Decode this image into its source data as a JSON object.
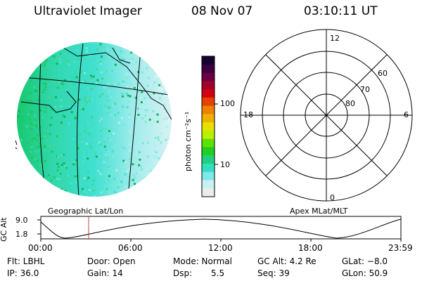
{
  "header": {
    "instrument": "Ultraviolet Imager",
    "date": "08 Nov 07",
    "time": "03:10:11 UT"
  },
  "colorbar": {
    "unit_label": "photon cm⁻²s⁻¹",
    "tick_100": "100",
    "tick_10": "10",
    "colors": [
      "#1a0030",
      "#3a0040",
      "#6a0040",
      "#a0002a",
      "#d00010",
      "#e84000",
      "#f08000",
      "#f0b000",
      "#e8e000",
      "#b8f000",
      "#60e000",
      "#20d020",
      "#20d080",
      "#30e0c0",
      "#80e8e8",
      "#c8f0f0",
      "#ececec"
    ]
  },
  "map_labels": {
    "left": "Geographic Lat/Lon",
    "right": "Apex MLat/MLT"
  },
  "polar": {
    "top": "12",
    "left": "18",
    "right": "6",
    "bottom": "0",
    "ring_60": "60",
    "ring_70": "70",
    "ring_80": "80"
  },
  "altitude_plot": {
    "ylabel": "GC Alt",
    "ymax": "9.0",
    "ymin": "1.8",
    "x_ticks": [
      "00:00",
      "06:00",
      "12:00",
      "18:00",
      "23:59"
    ],
    "marker_time": "03:10"
  },
  "info": {
    "filter": "Flt: LBHL",
    "door": "Door: Open",
    "mode": "Mode: Normal",
    "gc_alt": "GC Alt: 4.2 Re",
    "glat": "GLat: −8.0",
    "ip": "IP: 36.0",
    "gain": "Gain: 14",
    "dsp_label": "Dsp:",
    "dsp_value": "5.5",
    "seq": "Seq: 39",
    "glon": "GLon: 50.9"
  },
  "accent": {
    "marker_color": "#c04040"
  }
}
